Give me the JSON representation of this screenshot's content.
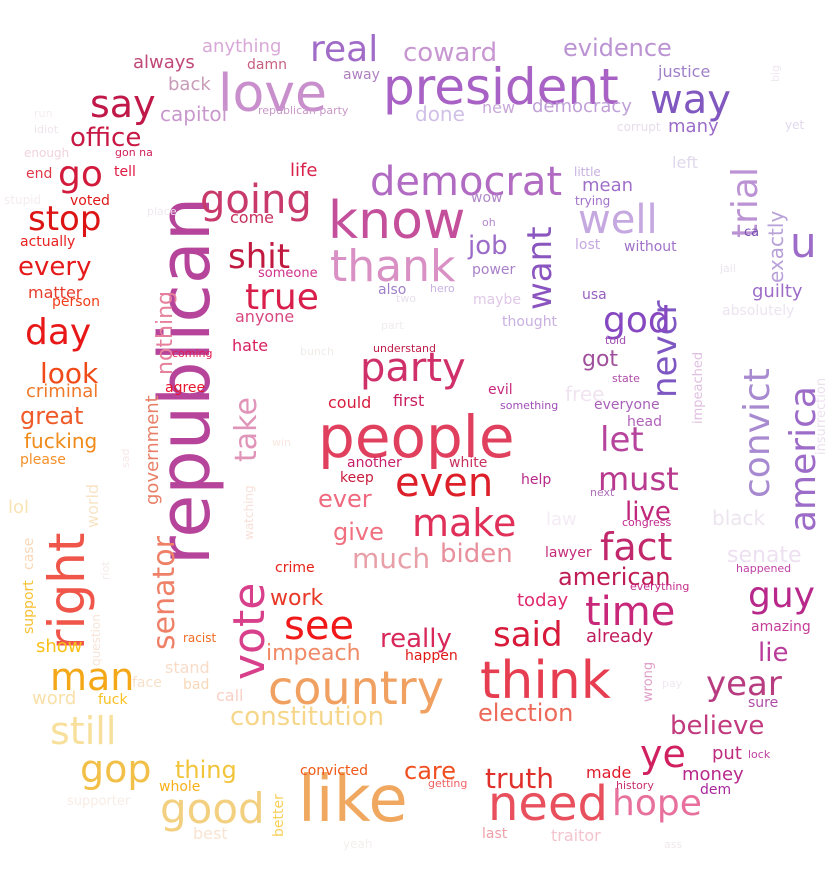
{
  "words": [
    {
      "t": "republican",
      "c": "#b5449a"
    },
    {
      "t": "people",
      "c": "#e0405e"
    },
    {
      "t": "like",
      "c": "#f0a860"
    },
    {
      "t": "president",
      "c": "#a861c4"
    },
    {
      "t": "know",
      "c": "#c4509c"
    },
    {
      "t": "think",
      "c": "#e63e50"
    },
    {
      "t": "country",
      "c": "#f0a060"
    },
    {
      "t": "need",
      "c": "#e8505e"
    },
    {
      "t": "love",
      "c": "#c98fcc"
    },
    {
      "t": "vote",
      "c": "#d8408c"
    },
    {
      "t": "right",
      "c": "#ef5548"
    },
    {
      "t": "democrat",
      "c": "#b26bc2"
    },
    {
      "t": "thank",
      "c": "#d990c4"
    },
    {
      "t": "party",
      "c": "#d0306a"
    },
    {
      "t": "even",
      "c": "#dd1f2a"
    },
    {
      "t": "time",
      "c": "#c8287a"
    },
    {
      "t": "good",
      "c": "#f3d080"
    },
    {
      "t": "still",
      "c": "#f8e09c"
    },
    {
      "t": "convict",
      "c": "#a78ad0"
    },
    {
      "t": "america",
      "c": "#9d6cc8"
    },
    {
      "t": "trial",
      "c": "#bb93d4"
    },
    {
      "t": "never",
      "c": "#7e57c2"
    },
    {
      "t": "want",
      "c": "#8a55bf"
    },
    {
      "t": "make",
      "c": "#e0305a"
    },
    {
      "t": "fact",
      "c": "#c2286c"
    },
    {
      "t": "see",
      "c": "#f01818"
    },
    {
      "t": "senator",
      "c": "#ef8068"
    },
    {
      "t": "take",
      "c": "#e094b8"
    },
    {
      "t": "going",
      "c": "#c83a6c"
    },
    {
      "t": "well",
      "c": "#c6a8e0"
    },
    {
      "t": "true",
      "c": "#d81e4a"
    },
    {
      "t": "shit",
      "c": "#c01a40"
    },
    {
      "t": "way",
      "c": "#8058c0"
    },
    {
      "t": "say",
      "c": "#c01848"
    },
    {
      "t": "u",
      "c": "#9c6cc8"
    },
    {
      "t": "real",
      "c": "#a06cc8"
    },
    {
      "t": "man",
      "c": "#f4a818"
    },
    {
      "t": "gop",
      "c": "#f2c048"
    },
    {
      "t": "ye",
      "c": "#d02060"
    },
    {
      "t": "hope",
      "c": "#e8709c"
    },
    {
      "t": "go",
      "c": "#d21a3c"
    },
    {
      "t": "day",
      "c": "#e81818"
    },
    {
      "t": "stop",
      "c": "#dc1414"
    },
    {
      "t": "guy",
      "c": "#b8288a"
    },
    {
      "t": "let",
      "c": "#b6449c"
    },
    {
      "t": "must",
      "c": "#b83a8e"
    },
    {
      "t": "god",
      "c": "#8648c0"
    },
    {
      "t": "said",
      "c": "#d81a3a"
    },
    {
      "t": "year",
      "c": "#b83c80"
    },
    {
      "t": "truth",
      "c": "#e0302c"
    },
    {
      "t": "office",
      "c": "#c81844"
    },
    {
      "t": "coward",
      "c": "#c897d2"
    },
    {
      "t": "evidence",
      "c": "#bc94d4"
    },
    {
      "t": "look",
      "c": "#f04a18"
    },
    {
      "t": "great",
      "c": "#f05a28"
    },
    {
      "t": "constitution",
      "c": "#f6d68a"
    },
    {
      "t": "election",
      "c": "#ed6a5a"
    },
    {
      "t": "believe",
      "c": "#c23a7e"
    },
    {
      "t": "biden",
      "c": "#e8909c"
    },
    {
      "t": "much",
      "c": "#e8a0a8"
    },
    {
      "t": "american",
      "c": "#c01c56"
    },
    {
      "t": "really",
      "c": "#d8285a"
    },
    {
      "t": "nothing",
      "c": "#e6809c"
    },
    {
      "t": "government",
      "c": "#e88068"
    },
    {
      "t": "impeach",
      "c": "#f08a66"
    },
    {
      "t": "job",
      "c": "#9c6cc8"
    },
    {
      "t": "give",
      "c": "#f07080"
    },
    {
      "t": "ever",
      "c": "#ef6a80"
    },
    {
      "t": "lie",
      "c": "#ba3c9a"
    },
    {
      "t": "live",
      "c": "#c0287c"
    },
    {
      "t": "every",
      "c": "#e61a1a"
    },
    {
      "t": "thing",
      "c": "#f2c43a"
    },
    {
      "t": "care",
      "c": "#f05020"
    },
    {
      "t": "fucking",
      "c": "#f08a18"
    },
    {
      "t": "criminal",
      "c": "#f07828"
    },
    {
      "t": "work",
      "c": "#e83828"
    },
    {
      "t": "got",
      "c": "#a0509c"
    },
    {
      "t": "senate",
      "c": "#ede0f0"
    },
    {
      "t": "black",
      "c": "#ece4ee"
    },
    {
      "t": "capitol",
      "c": "#c898cc"
    },
    {
      "t": "back",
      "c": "#c89cb8"
    },
    {
      "t": "always",
      "c": "#c04878"
    },
    {
      "t": "anything",
      "c": "#d8a8d8"
    },
    {
      "t": "done",
      "c": "#d0c0e8"
    },
    {
      "t": "democracy",
      "c": "#c0a0d8"
    },
    {
      "t": "many",
      "c": "#9c6cc8"
    },
    {
      "t": "justice",
      "c": "#a080c8"
    },
    {
      "t": "exactly",
      "c": "#b8a0d8"
    },
    {
      "t": "guilty",
      "c": "#9c6cc8"
    },
    {
      "t": "mean",
      "c": "#a070c8"
    },
    {
      "t": "come",
      "c": "#c8305c"
    },
    {
      "t": "life",
      "c": "#d8204a"
    },
    {
      "t": "tell",
      "c": "#e01840"
    },
    {
      "t": "voted",
      "c": "#e01818"
    },
    {
      "t": "actually",
      "c": "#e82020"
    },
    {
      "t": "matter",
      "c": "#e83c2c"
    },
    {
      "t": "person",
      "c": "#f03c18"
    },
    {
      "t": "world",
      "c": "#f8e4c4"
    },
    {
      "t": "please",
      "c": "#f49028"
    },
    {
      "t": "lol",
      "c": "#f8e4b4"
    },
    {
      "t": "show",
      "c": "#f8c018"
    },
    {
      "t": "word",
      "c": "#f8e0a8"
    },
    {
      "t": "fuck",
      "c": "#f8c020"
    },
    {
      "t": "stand",
      "c": "#f8dcc8"
    },
    {
      "t": "bad",
      "c": "#f8d8b8"
    },
    {
      "t": "face",
      "c": "#f8e0c8"
    },
    {
      "t": "call",
      "c": "#f8d0c4"
    },
    {
      "t": "hate",
      "c": "#d82060"
    },
    {
      "t": "anyone",
      "c": "#d84880"
    },
    {
      "t": "someone",
      "c": "#d0308c"
    },
    {
      "t": "agree",
      "c": "#e81830"
    },
    {
      "t": "could",
      "c": "#d81c3c"
    },
    {
      "t": "first",
      "c": "#c82060"
    },
    {
      "t": "evil",
      "c": "#c8287c"
    },
    {
      "t": "another",
      "c": "#c8206c"
    },
    {
      "t": "white",
      "c": "#c8305c"
    },
    {
      "t": "keep",
      "c": "#c81c3c"
    },
    {
      "t": "help",
      "c": "#b8288a"
    },
    {
      "t": "lawyer",
      "c": "#c42c7c"
    },
    {
      "t": "today",
      "c": "#e0286c"
    },
    {
      "t": "already",
      "c": "#c01c5c"
    },
    {
      "t": "happen",
      "c": "#e01818"
    },
    {
      "t": "crime",
      "c": "#e82018"
    },
    {
      "t": "convicted",
      "c": "#f05a18"
    },
    {
      "t": "made",
      "c": "#e01c2c"
    },
    {
      "t": "put",
      "c": "#c02c7c"
    },
    {
      "t": "money",
      "c": "#b8288a"
    },
    {
      "t": "dem",
      "c": "#a8289c"
    },
    {
      "t": "history",
      "c": "#c82c6c"
    },
    {
      "t": "sure",
      "c": "#b04ca8"
    },
    {
      "t": "amazing",
      "c": "#c43c98"
    },
    {
      "t": "impeached",
      "c": "#e0c0e0"
    },
    {
      "t": "wrong",
      "c": "#e0a0c8"
    },
    {
      "t": "free",
      "c": "#f0e4f0"
    },
    {
      "t": "law",
      "c": "#f4ecf4"
    },
    {
      "t": "everyone",
      "c": "#a860b8"
    },
    {
      "t": "head",
      "c": "#b060b8"
    },
    {
      "t": "state",
      "c": "#b04ca8"
    },
    {
      "t": "told",
      "c": "#a050b0"
    },
    {
      "t": "usa",
      "c": "#9860c0"
    },
    {
      "t": "maybe",
      "c": "#e0c8e8"
    },
    {
      "t": "thought",
      "c": "#c8b0e0"
    },
    {
      "t": "power",
      "c": "#a880c8"
    },
    {
      "t": "also",
      "c": "#a080c8"
    },
    {
      "t": "hero",
      "c": "#c8b0e0"
    },
    {
      "t": "wow",
      "c": "#b088c8"
    },
    {
      "t": "oh",
      "c": "#b088c8"
    },
    {
      "t": "without",
      "c": "#a070c8"
    },
    {
      "t": "lost",
      "c": "#c8a8e0"
    },
    {
      "t": "trying",
      "c": "#a070c8"
    },
    {
      "t": "little",
      "c": "#c8b0e0"
    },
    {
      "t": "left",
      "c": "#e0d8ec"
    },
    {
      "t": "ca",
      "c": "#7850b0"
    },
    {
      "t": "new",
      "c": "#c8a8d8"
    },
    {
      "t": "away",
      "c": "#b080c0"
    },
    {
      "t": "damn",
      "c": "#c86080"
    },
    {
      "t": "republican party",
      "c": "#c898c8"
    },
    {
      "t": "corrupt",
      "c": "#e8dcec"
    },
    {
      "t": "big",
      "c": "#f0e8f0"
    },
    {
      "t": "yet",
      "c": "#e0d8ec"
    },
    {
      "t": "absolutely",
      "c": "#ece4f0"
    },
    {
      "t": "insurrection",
      "c": "#ece0ee"
    },
    {
      "t": "something",
      "c": "#a04cb8"
    },
    {
      "t": "next",
      "c": "#b070b8"
    },
    {
      "t": "congress",
      "c": "#c0288c"
    },
    {
      "t": "happened",
      "c": "#c040a8"
    },
    {
      "t": "everything",
      "c": "#c82c8c"
    },
    {
      "t": "lock",
      "c": "#c040a0"
    },
    {
      "t": "pay",
      "c": "#f0e8f0"
    },
    {
      "t": "last",
      "c": "#f0a0a8"
    },
    {
      "t": "traitor",
      "c": "#f4c4cc"
    },
    {
      "t": "getting",
      "c": "#f06060"
    },
    {
      "t": "whole",
      "c": "#f8b018"
    },
    {
      "t": "better",
      "c": "#f8d058"
    },
    {
      "t": "best",
      "c": "#f8e4d0"
    },
    {
      "t": "supporter",
      "c": "#f8ece4"
    },
    {
      "t": "yeah",
      "c": "#f4eeee"
    },
    {
      "t": "ass",
      "c": "#f0e8ec"
    },
    {
      "t": "racist",
      "c": "#f06c24"
    },
    {
      "t": "question",
      "c": "#f8e4d8"
    },
    {
      "t": "support",
      "c": "#f8c030"
    },
    {
      "t": "case",
      "c": "#f8d8b8"
    },
    {
      "t": "riot",
      "c": "#f4eaea"
    },
    {
      "t": "watching",
      "c": "#f8e0d8"
    },
    {
      "t": "win",
      "c": "#f8e8e0"
    },
    {
      "t": "coming",
      "c": "#e01c54"
    },
    {
      "t": "bunch",
      "c": "#f0ece8"
    },
    {
      "t": "understand",
      "c": "#c01c48"
    },
    {
      "t": "two",
      "c": "#e8e0ec"
    },
    {
      "t": "part",
      "c": "#f0ecf0"
    },
    {
      "t": "jail",
      "c": "#ece4f0"
    },
    {
      "t": "place",
      "c": "#f0e8f0"
    },
    {
      "t": "gon na",
      "c": "#d0205c"
    },
    {
      "t": "enough",
      "c": "#f0d4dc"
    },
    {
      "t": "idiot",
      "c": "#f0e4ec"
    },
    {
      "t": "run",
      "c": "#f4ecf0"
    },
    {
      "t": "end",
      "c": "#e03848"
    },
    {
      "t": "stupid",
      "c": "#f4ecf0"
    },
    {
      "t": "bad2",
      "c": "#f8e8e8"
    }
  ]
}
